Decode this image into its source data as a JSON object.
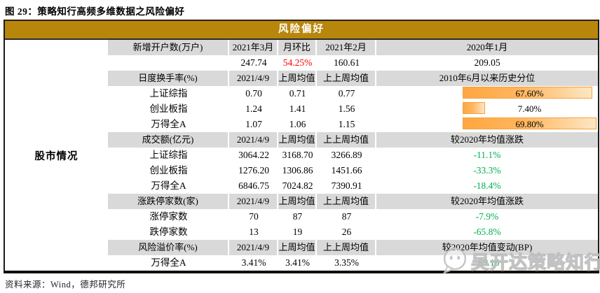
{
  "figure_title": "图 29：策略知行高频多维数据之风险偏好",
  "panel": {
    "header": "风险偏好"
  },
  "category_label": "股市情况",
  "source_note": "资料来源：Wind，德邦研究所",
  "watermark": {
    "icon": "wechat-icon",
    "text": "吴开达策略知行"
  },
  "colors": {
    "gold_header_bg": "#B8860B",
    "section_header_bg": "#D9D9D9",
    "negative_green": "#00B050",
    "highlight_red": "#FF0000",
    "percentile_bar_orange": "#FFA640"
  },
  "table": {
    "sections": [
      {
        "header": [
          "新增开户数(万户)",
          "2021年3月",
          "月环比",
          "2021年2月",
          "2020年1月"
        ],
        "rows": [
          {
            "cells": [
              "",
              "247.74",
              {
                "text": "54.25%",
                "color": "red"
              },
              "160.61",
              "209.05"
            ]
          }
        ]
      },
      {
        "header": [
          "日度换手率(%)",
          "2021/4/9",
          "上周均值",
          "上上周均值",
          "2010年6月以来历史分位"
        ],
        "rows": [
          {
            "cells": [
              "上证综指",
              "0.70",
              "0.71",
              "0.77",
              {
                "text": "67.60%",
                "bar": 97
              }
            ]
          },
          {
            "cells": [
              "创业板指",
              "1.24",
              "1.41",
              "1.56",
              {
                "text": "7.40%",
                "bar": 17
              }
            ]
          },
          {
            "cells": [
              "万得全A",
              "1.07",
              "1.06",
              "1.15",
              {
                "text": "69.80%",
                "bar": 100
              }
            ]
          }
        ]
      },
      {
        "header": [
          "成交额(亿元)",
          "2021/4/9",
          "上周均值",
          "上上周均值",
          "较2020年均值涨跌"
        ],
        "rows": [
          {
            "cells": [
              "上证综指",
              "3064.22",
              "3168.70",
              "3266.89",
              {
                "text": "-11.1%",
                "color": "green"
              }
            ]
          },
          {
            "cells": [
              "创业板指",
              "1276.20",
              "1306.86",
              "1451.66",
              {
                "text": "-33.3%",
                "color": "green"
              }
            ]
          },
          {
            "cells": [
              "万得全A",
              "6846.75",
              "7024.82",
              "7390.91",
              {
                "text": "-18.4%",
                "color": "green"
              }
            ]
          }
        ]
      },
      {
        "header": [
          "涨跌停家数(家)",
          "2021/4/9",
          "上周均值",
          "上上周均值",
          "较2020年均值涨跌"
        ],
        "rows": [
          {
            "cells": [
              "涨停家数",
              "70",
              "87",
              "87",
              {
                "text": "-7.9%",
                "color": "green"
              }
            ]
          },
          {
            "cells": [
              "跌停家数",
              "13",
              "19",
              "26",
              {
                "text": "-65.8%",
                "color": "green"
              }
            ]
          }
        ]
      },
      {
        "header": [
          "风险溢价率(%)",
          "2021/4/9",
          "上周均值",
          "上上周均值",
          "较2020年均值变动(BP)"
        ],
        "rows": [
          {
            "cells": [
              "万得全A",
              "3.41%",
              "3.41%",
              "3.35%",
              {
                "text": "-69.16",
                "color": "green"
              }
            ]
          }
        ]
      }
    ]
  }
}
